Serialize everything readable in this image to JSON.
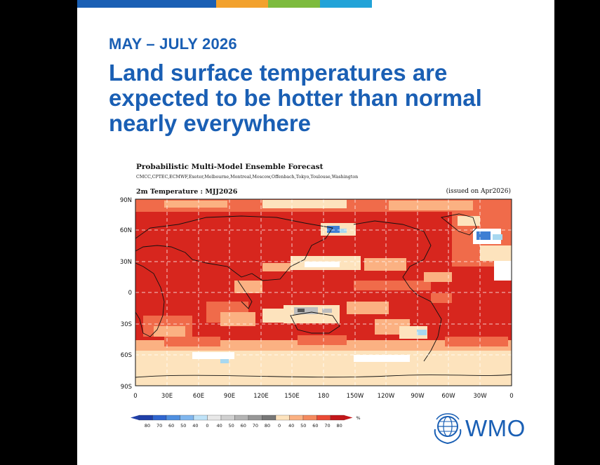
{
  "header": {
    "date_range": "MAY – JULY 2026",
    "headline": "Land surface temperatures are expected to be hotter than normal nearly everywhere"
  },
  "forecast": {
    "title": "Probabilistic Multi-Model Ensemble Forecast",
    "models": "CMCC,CPTEC,ECMWF,Exeter,Melbourne,Montreal,Moscow,Offenbach,Tokyo,Toulouse,Washington",
    "variable": "2m Temperature : MJJ2026",
    "issued": "(issued on Apr2026)"
  },
  "map": {
    "lat_labels": [
      "90N",
      "60N",
      "30N",
      "0",
      "30S",
      "60S",
      "90S"
    ],
    "lon_labels": [
      "0",
      "30E",
      "60E",
      "90E",
      "120E",
      "150E",
      "180",
      "150W",
      "120W",
      "90W",
      "60W",
      "30W",
      "0"
    ],
    "colors": {
      "above_strong": "#d7261e",
      "above_medium": "#f06b4a",
      "above_light": "#fbb182",
      "above_faint": "#fde3bd",
      "normal": "#ffffff",
      "near_normal_grey": "#bdbdbd",
      "below_light": "#a8d8f0",
      "below_strong": "#3f7fd3"
    }
  },
  "legend": {
    "below_labels": [
      "80",
      "70",
      "60",
      "50",
      "40"
    ],
    "normal_labels": [
      "0",
      "40",
      "50",
      "60",
      "70",
      "80"
    ],
    "above_labels": [
      "0",
      "40",
      "50",
      "60",
      "70",
      "80"
    ],
    "unit": "%",
    "below_colors": [
      "#1f3fa8",
      "#2f66cf",
      "#4f8fe0",
      "#7fb6ee",
      "#bfe3f8"
    ],
    "normal_colors": [
      "#e8e8e8",
      "#d0d0d0",
      "#b4b4b4",
      "#979797",
      "#777777"
    ],
    "above_colors": [
      "#fde3bd",
      "#fbb182",
      "#f58a5e",
      "#ea4a35",
      "#c3161a"
    ]
  },
  "brand": {
    "logo_text": "WMO",
    "color": "#1a5fb4"
  }
}
